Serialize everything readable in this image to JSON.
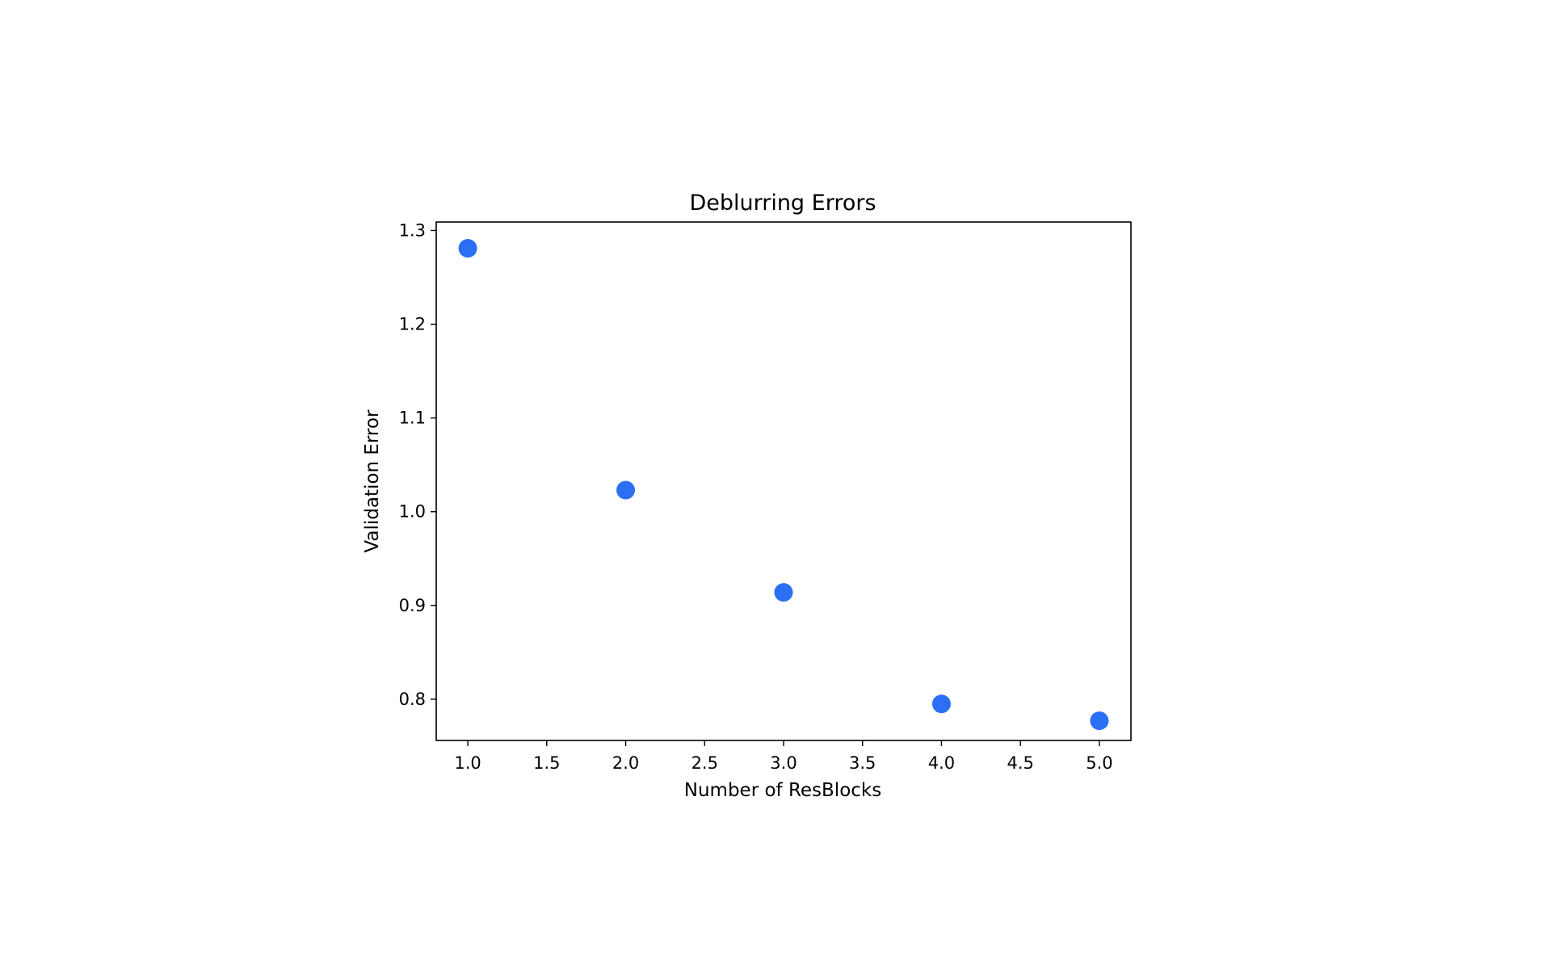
{
  "chart_data": {
    "type": "scatter",
    "title": "Deblurring Errors",
    "xlabel": "Number of ResBlocks",
    "ylabel": "Validation Error",
    "x": [
      1,
      2,
      3,
      4,
      5
    ],
    "y": [
      1.281,
      1.023,
      0.914,
      0.795,
      0.777
    ],
    "xlim": [
      0.8,
      5.2
    ],
    "ylim": [
      0.756,
      1.309
    ],
    "xticks": [
      1.0,
      1.5,
      2.0,
      2.5,
      3.0,
      3.5,
      4.0,
      4.5,
      5.0
    ],
    "xtick_labels": [
      "1.0",
      "1.5",
      "2.0",
      "2.5",
      "3.0",
      "3.5",
      "4.0",
      "4.5",
      "5.0"
    ],
    "yticks": [
      0.8,
      0.9,
      1.0,
      1.1,
      1.2,
      1.3
    ],
    "ytick_labels": [
      "0.8",
      "0.9",
      "1.0",
      "1.1",
      "1.2",
      "1.3"
    ],
    "grid": false,
    "legend": "none",
    "marker_color": "#2b6ff5"
  }
}
